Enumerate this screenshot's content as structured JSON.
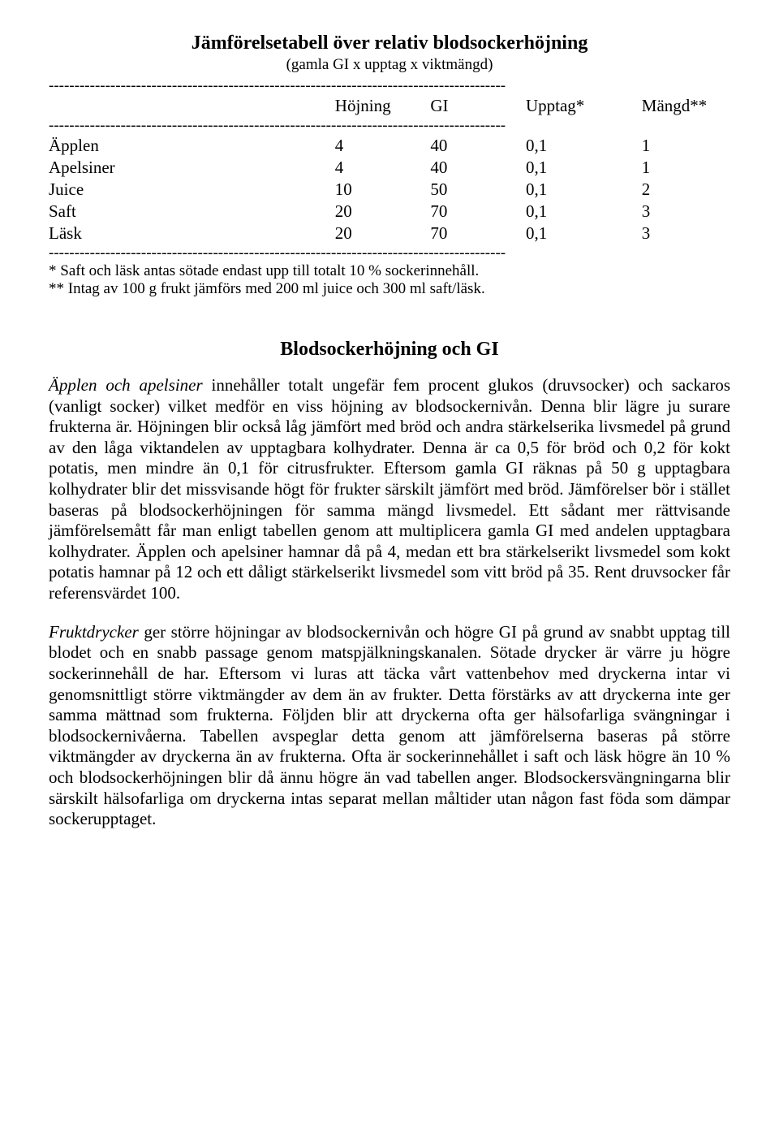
{
  "table": {
    "title": "Jämförelsetabell över relativ blodsockerhöjning",
    "subtitle": "(gamla GI x upptag x viktmängd)",
    "dashline": "-----------------------------------------------------------------------------------------",
    "headers": {
      "name": "",
      "hojning": "Höjning",
      "gi": "GI",
      "upptag": "Upptag*",
      "mangd": "Mängd**"
    },
    "rows": [
      {
        "name": "Äpplen",
        "h": "4",
        "gi": "40",
        "up": "0,1",
        "m": "1"
      },
      {
        "name": "Apelsiner",
        "h": "4",
        "gi": "40",
        "up": "0,1",
        "m": "1"
      },
      {
        "name": "Juice",
        "h": "10",
        "gi": "50",
        "up": "0,1",
        "m": "2"
      },
      {
        "name": "Saft",
        "h": "20",
        "gi": "70",
        "up": "0,1",
        "m": "3"
      },
      {
        "name": "Läsk",
        "h": "20",
        "gi": "70",
        "up": "0,1",
        "m": "3"
      }
    ],
    "footnote1": "* Saft och läsk antas sötade endast upp till totalt 10 % sockerinnehåll.",
    "footnote2": "** Intag av 100 g frukt jämförs med 200 ml juice och 300 ml saft/läsk."
  },
  "section_title": "Blodsockerhöjning och GI",
  "para1_lead": "Äpplen och apelsiner",
  "para1_rest": " innehåller totalt ungefär fem procent glukos (druvsocker) och sackaros (vanligt socker) vilket medför en viss höjning av blodsockernivån. Denna blir lägre ju surare frukterna är. Höjningen blir också låg jämfört med bröd och andra stärkelserika livsmedel på grund av den låga viktandelen av upptagbara kolhydrater. Denna är ca 0,5 för bröd och 0,2 för kokt potatis, men mindre än 0,1 för citrusfrukter. Eftersom gamla GI räknas på 50 g upptagbara kolhydrater blir det missvisande högt för frukter särskilt jämfört med bröd. Jämförelser bör i stället baseras på blodsockerhöjningen för samma mängd livsmedel. Ett sådant mer rättvisande jämförelsemått får man enligt tabellen genom att multiplicera gamla GI med andelen upptagbara kolhydrater. Äpplen och apelsiner hamnar då på 4, medan ett bra stärkelserikt livsmedel som kokt potatis hamnar på 12 och ett dåligt stärkelserikt livsmedel som vitt bröd på 35. Rent druvsocker får referensvärdet 100.",
  "para2_lead": "Fruktdrycker",
  "para2_rest": " ger större höjningar av blodsockernivån och högre GI på grund av snabbt upptag till blodet och en snabb passage genom matspjälkningskanalen. Sötade drycker är värre ju högre sockerinnehåll de har. Eftersom vi luras att täcka vårt vattenbehov med dryckerna intar vi genomsnittligt större viktmängder av dem än av frukter. Detta förstärks av att dryckerna inte ger samma mättnad som frukterna. Följden blir att dryckerna ofta ger hälsofarliga svängningar i blodsockernivåerna. Tabellen avspeglar detta genom att jämförelserna baseras på större viktmängder av dryckerna än av frukterna. Ofta är sockerinnehållet i saft och läsk högre än 10 % och blodsockerhöjningen blir då ännu högre än vad tabellen anger. Blodsockersvängningarna blir särskilt hälsofarliga om dryckerna intas separat mellan måltider utan någon fast föda som dämpar sockerupptaget."
}
